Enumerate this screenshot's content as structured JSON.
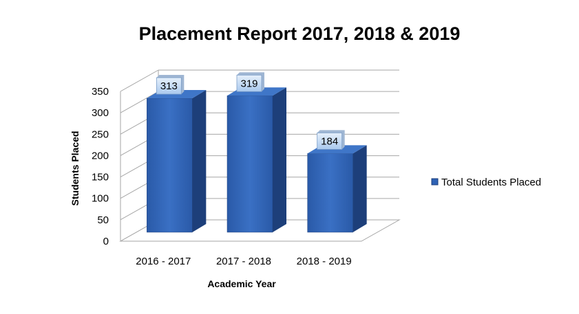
{
  "chart_data": {
    "type": "bar",
    "title": "Placement Report 2017, 2018 & 2019",
    "xlabel": "Academic Year",
    "ylabel": "Students Placed",
    "categories": [
      "2016 - 2017",
      "2017 - 2018",
      "2018 - 2019"
    ],
    "series": [
      {
        "name": "Total Students Placed",
        "values": [
          313,
          319,
          184
        ]
      }
    ],
    "ylim": [
      0,
      350
    ],
    "yticks": [
      0,
      50,
      100,
      150,
      200,
      250,
      300,
      350
    ],
    "grid": true,
    "legend_position": "right",
    "style": "3d-column",
    "colors": {
      "bar_front": "#2e62b5",
      "bar_side": "#1d3f7a",
      "bar_top": "#3f76c8",
      "label_fill": "#cfe2f8",
      "gridline": "#a6a6a6"
    }
  }
}
